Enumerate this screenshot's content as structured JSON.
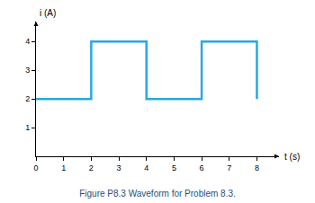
{
  "chart_data": {
    "type": "line",
    "title": "Figure P8.3 Waveform for Problem 8.3.",
    "xlabel": "t (s)",
    "ylabel": "i (A)",
    "x": [
      0,
      2,
      2,
      4,
      4,
      6,
      6,
      8,
      8
    ],
    "values": [
      2,
      2,
      4,
      4,
      2,
      2,
      4,
      4,
      2
    ],
    "color": "#29a8e0",
    "line_style": "solid",
    "xlim": [
      0,
      8.8
    ],
    "ylim": [
      0,
      4.7
    ],
    "xticks": [
      0,
      1,
      2,
      3,
      4,
      5,
      6,
      7,
      8
    ],
    "yticks": [
      1,
      2,
      3,
      4
    ],
    "grid": false
  }
}
